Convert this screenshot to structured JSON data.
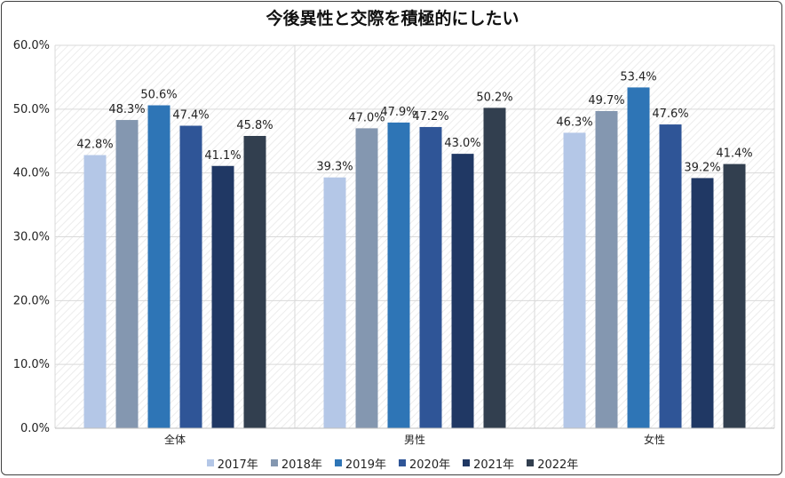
{
  "chart_data": {
    "type": "bar",
    "title": "今後異性と交際を積極的にしたい",
    "categories": [
      "全体",
      "男性",
      "女性"
    ],
    "series": [
      {
        "name": "2017年",
        "color": "#b4c7e7",
        "values": [
          42.8,
          39.3,
          46.3
        ]
      },
      {
        "name": "2018年",
        "color": "#8497b0",
        "values": [
          48.3,
          47.0,
          49.7
        ]
      },
      {
        "name": "2019年",
        "color": "#2e75b6",
        "values": [
          50.6,
          47.9,
          53.4
        ]
      },
      {
        "name": "2020年",
        "color": "#2f5597",
        "values": [
          47.4,
          47.2,
          47.6
        ]
      },
      {
        "name": "2021年",
        "color": "#203864",
        "values": [
          41.1,
          43.0,
          39.2
        ]
      },
      {
        "name": "2022年",
        "color": "#323f4f",
        "values": [
          45.8,
          50.2,
          41.4
        ]
      }
    ],
    "ylim": [
      0,
      60
    ],
    "yticks": [
      0,
      10,
      20,
      30,
      40,
      50,
      60
    ],
    "ytick_labels": [
      "0.0%",
      "10.0%",
      "20.0%",
      "30.0%",
      "40.0%",
      "50.0%",
      "60.0%"
    ],
    "value_suffix": "%",
    "grid": true,
    "legend_position": "bottom"
  }
}
